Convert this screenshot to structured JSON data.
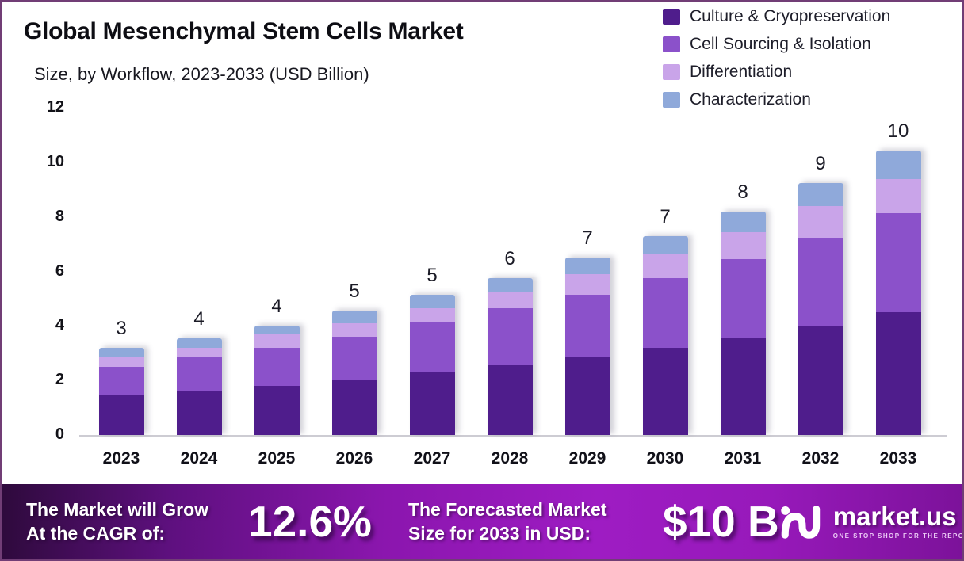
{
  "header": {
    "title": "Global Mesenchymal Stem Cells Market",
    "subtitle": "Size, by Workflow, 2023-2033 (USD Billion)"
  },
  "chart_data": {
    "type": "bar",
    "stacked": true,
    "title": "Global Mesenchymal Stem Cells Market Size, by Workflow, 2023-2033 (USD Billion)",
    "unit": "USD Billion",
    "categories": [
      "2023",
      "2024",
      "2025",
      "2026",
      "2027",
      "2028",
      "2029",
      "2030",
      "2031",
      "2032",
      "2033"
    ],
    "series": [
      {
        "name": "Culture & Cryopreservation",
        "color": "#4F1D8C",
        "values": [
          1.45,
          1.6,
          1.8,
          2.0,
          2.3,
          2.55,
          2.85,
          3.2,
          3.55,
          4.0,
          4.5
        ]
      },
      {
        "name": "Cell Sourcing & Isolation",
        "color": "#8B51CA",
        "values": [
          1.05,
          1.25,
          1.4,
          1.6,
          1.85,
          2.1,
          2.3,
          2.55,
          2.9,
          3.25,
          3.65
        ]
      },
      {
        "name": "Differentiation",
        "color": "#C9A4E9",
        "values": [
          0.35,
          0.35,
          0.5,
          0.5,
          0.5,
          0.6,
          0.75,
          0.9,
          1.0,
          1.15,
          1.25
        ]
      },
      {
        "name": "Characterization",
        "color": "#8FA9DA",
        "values": [
          0.35,
          0.35,
          0.3,
          0.45,
          0.5,
          0.5,
          0.6,
          0.65,
          0.75,
          0.85,
          1.05
        ]
      }
    ],
    "bar_total_labels": [
      "3",
      "4",
      "4",
      "5",
      "5",
      "6",
      "7",
      "7",
      "8",
      "9",
      "10"
    ],
    "yticks": [
      0,
      2,
      4,
      6,
      8,
      10,
      12
    ],
    "ylim": [
      0,
      12
    ],
    "grid": false,
    "legend_position": "top-right"
  },
  "banner": {
    "cagr_label_line1": "The Market will Grow",
    "cagr_label_line2": "At the CAGR of:",
    "cagr_value": "12.6%",
    "forecast_label_line1": "The Forecasted Market",
    "forecast_label_line2": "Size for 2033 in USD:",
    "forecast_value": "$10 B",
    "logo_text": "market.us",
    "logo_tagline": "ONE STOP SHOP FOR THE REPORTS"
  }
}
